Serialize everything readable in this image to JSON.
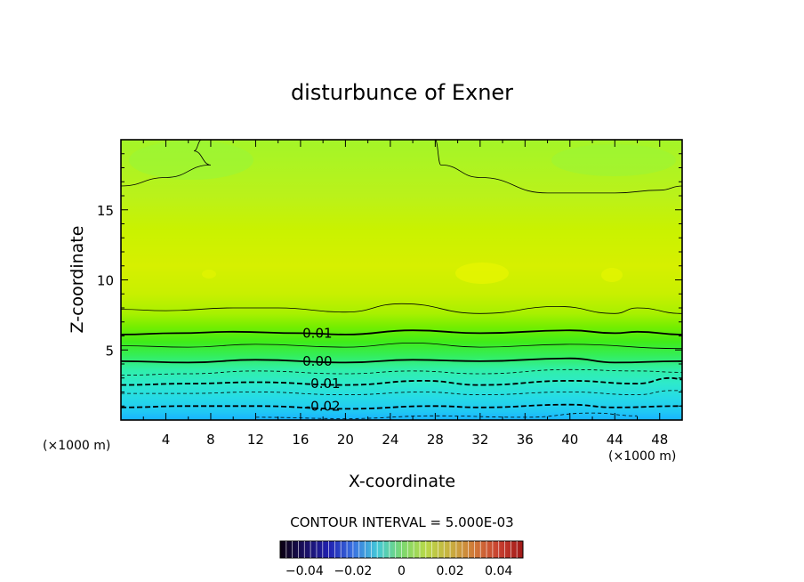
{
  "chart_data": {
    "type": "contour",
    "title": "disturbunce of Exner",
    "xlabel": "X-coordinate",
    "ylabel": "Z-coordinate",
    "x_unit": "(×1000 m)",
    "x_unit_right": "(×1000 m)",
    "xlim": [
      0,
      50
    ],
    "ylim": [
      0,
      20
    ],
    "x_ticks": [
      4,
      8,
      12,
      16,
      20,
      24,
      28,
      32,
      36,
      40,
      44,
      48
    ],
    "y_ticks": [
      5,
      10,
      15
    ],
    "contour_interval_text": "CONTOUR INTERVAL = 5.000E-03",
    "contour_labels": [
      {
        "text": "0.01",
        "x": 17.5,
        "z": 6.2
      },
      {
        "text": "0.00",
        "x": 17.5,
        "z": 4.2
      },
      {
        "text": "-0.01",
        "x": 18.0,
        "z": 2.6
      },
      {
        "text": "-0.02",
        "x": 18.0,
        "z": 1.0
      }
    ],
    "contours": [
      {
        "level": 0.015,
        "style": "thin-solid",
        "points": [
          [
            0,
            16.7
          ],
          [
            4,
            17.3
          ],
          [
            8,
            18.2
          ],
          [
            6.5,
            19.2
          ],
          [
            7.2,
            20
          ]
        ]
      },
      {
        "level": 0.015,
        "style": "thin-solid",
        "points": [
          [
            28,
            20
          ],
          [
            28.5,
            18.2
          ],
          [
            32,
            17.3
          ],
          [
            38,
            16.2
          ],
          [
            44,
            16.2
          ],
          [
            48,
            16.4
          ],
          [
            50,
            16.7
          ]
        ]
      },
      {
        "level": 0.01,
        "style": "thin-solid",
        "points": [
          [
            0,
            7.9
          ],
          [
            4,
            7.8
          ],
          [
            10,
            8.0
          ],
          [
            14,
            8.0
          ],
          [
            20,
            7.7
          ],
          [
            25,
            8.3
          ],
          [
            32,
            7.6
          ],
          [
            39,
            8.1
          ],
          [
            44,
            7.6
          ],
          [
            46,
            8.0
          ],
          [
            50,
            7.6
          ]
        ]
      },
      {
        "level": 0.01,
        "style": "thick-solid",
        "points": [
          [
            0,
            6.1
          ],
          [
            5,
            6.2
          ],
          [
            10,
            6.3
          ],
          [
            16,
            6.2
          ],
          [
            20,
            6.1
          ],
          [
            26,
            6.4
          ],
          [
            32,
            6.2
          ],
          [
            40,
            6.4
          ],
          [
            44,
            6.2
          ],
          [
            46,
            6.3
          ],
          [
            50,
            6.1
          ]
        ]
      },
      {
        "level": 0.005,
        "style": "thin-solid",
        "points": [
          [
            0,
            5.3
          ],
          [
            6,
            5.2
          ],
          [
            12,
            5.4
          ],
          [
            20,
            5.2
          ],
          [
            26,
            5.5
          ],
          [
            32,
            5.2
          ],
          [
            40,
            5.4
          ],
          [
            50,
            5.1
          ]
        ]
      },
      {
        "level": 0.0,
        "style": "thick-solid",
        "points": [
          [
            0,
            4.2
          ],
          [
            6,
            4.1
          ],
          [
            12,
            4.3
          ],
          [
            20,
            4.1
          ],
          [
            26,
            4.3
          ],
          [
            32,
            4.2
          ],
          [
            40,
            4.4
          ],
          [
            44,
            4.1
          ],
          [
            50,
            4.2
          ]
        ]
      },
      {
        "level": -0.005,
        "style": "thin-dashed",
        "points": [
          [
            0,
            3.2
          ],
          [
            6,
            3.3
          ],
          [
            12,
            3.5
          ],
          [
            20,
            3.3
          ],
          [
            26,
            3.5
          ],
          [
            32,
            3.3
          ],
          [
            40,
            3.6
          ],
          [
            46,
            3.5
          ],
          [
            50,
            3.4
          ]
        ]
      },
      {
        "level": -0.01,
        "style": "thick-dashed",
        "points": [
          [
            0,
            2.5
          ],
          [
            6,
            2.6
          ],
          [
            12,
            2.7
          ],
          [
            20,
            2.5
          ],
          [
            27,
            2.8
          ],
          [
            32,
            2.5
          ],
          [
            40,
            2.8
          ],
          [
            46,
            2.6
          ],
          [
            49,
            3.0
          ],
          [
            50,
            2.9
          ]
        ]
      },
      {
        "level": -0.015,
        "style": "thin-dashed",
        "points": [
          [
            0,
            1.9
          ],
          [
            6,
            1.9
          ],
          [
            12,
            2.0
          ],
          [
            20,
            1.8
          ],
          [
            27,
            2.0
          ],
          [
            32,
            1.8
          ],
          [
            40,
            2.0
          ],
          [
            46,
            1.8
          ],
          [
            49,
            2.1
          ],
          [
            50,
            2.1
          ]
        ]
      },
      {
        "level": -0.02,
        "style": "thick-dashed",
        "points": [
          [
            0,
            0.9
          ],
          [
            6,
            1.0
          ],
          [
            12,
            1.0
          ],
          [
            20,
            0.8
          ],
          [
            28,
            1.0
          ],
          [
            32,
            0.9
          ],
          [
            40,
            1.1
          ],
          [
            44,
            0.9
          ],
          [
            50,
            1.0
          ]
        ]
      },
      {
        "level": -0.025,
        "style": "thin-dashed",
        "points": [
          [
            12,
            0.2
          ],
          [
            20,
            0.1
          ],
          [
            28,
            0.3
          ],
          [
            36,
            0.2
          ],
          [
            42,
            0.5
          ],
          [
            46,
            0.3
          ]
        ]
      }
    ],
    "colorbar": {
      "min": -0.05,
      "max": 0.05,
      "tick_labels": [
        "−0.04",
        "−0.02",
        "0",
        "0.02",
        "0.04"
      ],
      "tick_values": [
        -0.04,
        -0.02,
        0,
        0.02,
        0.04
      ]
    },
    "colors": {
      "cyan_deep": "#1ab4ff",
      "cyan": "#22ddee",
      "teal": "#33eecc",
      "green_teal": "#2ef29a",
      "green": "#33ee22",
      "green_light": "#7cf000",
      "yellow_green_1": "#b4f208",
      "yellow_green_2": "#ccf000",
      "yellow_green_3": "#dcf000",
      "yellow_spot": "#eef400",
      "top_green": "#a6f52a"
    }
  }
}
